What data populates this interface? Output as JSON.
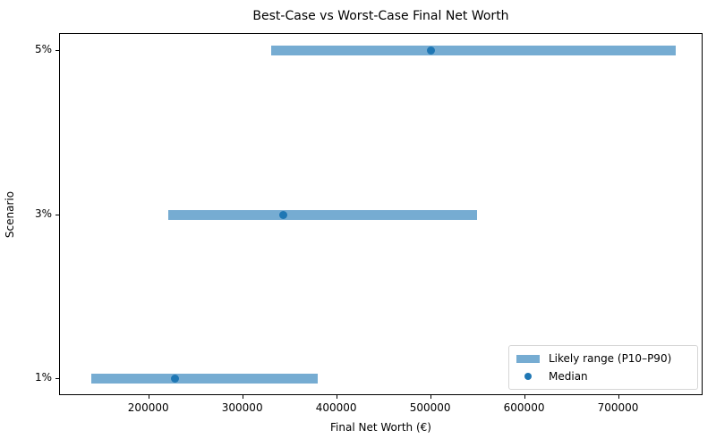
{
  "chart_data": {
    "type": "range",
    "title": "Best-Case vs Worst-Case Final Net Worth",
    "xlabel": "Final Net Worth (€)",
    "ylabel": "Scenario",
    "categories": [
      "1%",
      "3%",
      "5%"
    ],
    "series": [
      {
        "name": "Likely range (P10–P90)",
        "low": [
          139000,
          221000,
          331000
        ],
        "high": [
          380000,
          550000,
          761000
        ]
      },
      {
        "name": "Median",
        "values": [
          228000,
          344000,
          501000
        ]
      }
    ],
    "xlim": [
      105000,
      790000
    ],
    "xticks": [
      200000,
      300000,
      400000,
      500000,
      600000,
      700000
    ],
    "xtick_labels": [
      "200000",
      "300000",
      "400000",
      "500000",
      "600000",
      "700000"
    ],
    "grid": false,
    "legend_position": "lower right",
    "colors": {
      "range": "#76acd2",
      "median": "#1f77b4"
    }
  },
  "legend": {
    "range_label": "Likely range (P10–P90)",
    "median_label": "Median"
  }
}
